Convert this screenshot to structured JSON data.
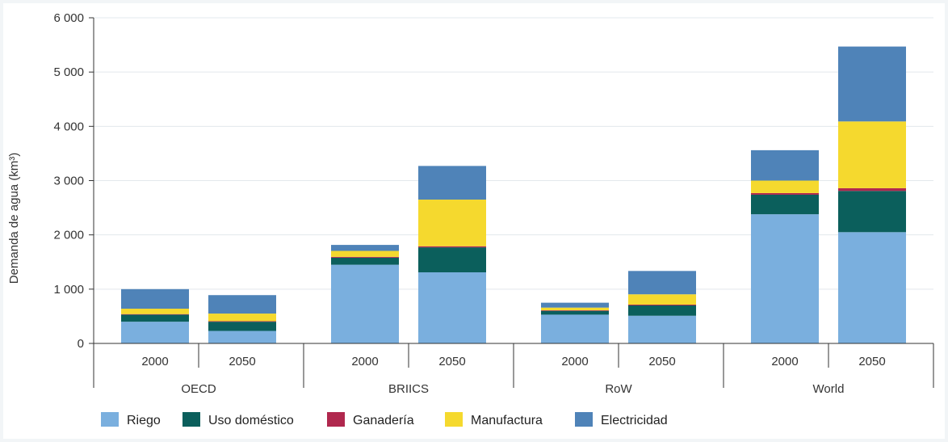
{
  "chart_data": {
    "type": "bar",
    "stacked": true,
    "ylabel": "Demanda de agua (km³)",
    "ylim": [
      0,
      6000
    ],
    "yticks": [
      0,
      1000,
      2000,
      3000,
      4000,
      5000,
      6000
    ],
    "ytick_labels": [
      "0",
      "1 000",
      "2 000",
      "3 000",
      "4 000",
      "5 000",
      "6 000"
    ],
    "grid": "horizontal",
    "legend_position": "bottom",
    "groups": [
      {
        "name": "OECD",
        "categories": [
          "2000",
          "2050"
        ]
      },
      {
        "name": "BRIICS",
        "categories": [
          "2000",
          "2050"
        ]
      },
      {
        "name": "RoW",
        "categories": [
          "2000",
          "2050"
        ]
      },
      {
        "name": "World",
        "categories": [
          "2000",
          "2050"
        ]
      }
    ],
    "series": [
      {
        "name": "Riego",
        "color": "#7aafde",
        "values": [
          400,
          230,
          1450,
          1310,
          530,
          510,
          2380,
          2050
        ]
      },
      {
        "name": "Uso doméstico",
        "color": "#0b5f5c",
        "values": [
          130,
          170,
          130,
          460,
          70,
          190,
          360,
          760
        ]
      },
      {
        "name": "Ganadería",
        "color": "#b0284e",
        "values": [
          10,
          10,
          15,
          20,
          10,
          15,
          30,
          50
        ]
      },
      {
        "name": "Manufactura",
        "color": "#f5d92e",
        "values": [
          100,
          140,
          110,
          860,
          50,
          190,
          230,
          1230
        ]
      },
      {
        "name": "Electricidad",
        "color": "#4f83b8",
        "values": [
          360,
          340,
          110,
          620,
          90,
          430,
          560,
          1380
        ]
      }
    ]
  }
}
